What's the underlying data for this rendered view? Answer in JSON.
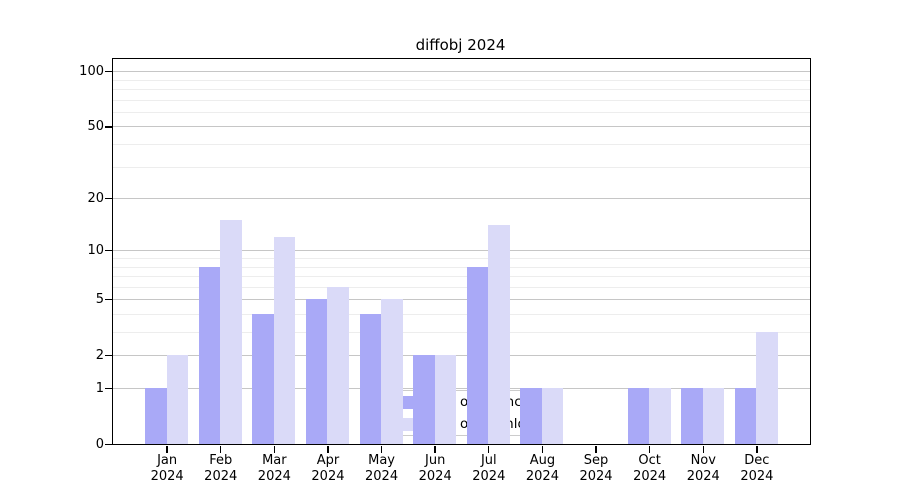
{
  "chart_data": {
    "type": "bar",
    "title": "diffobj 2024",
    "categories": [
      "Jan",
      "Feb",
      "Mar",
      "Apr",
      "May",
      "Jun",
      "Jul",
      "Aug",
      "Sep",
      "Oct",
      "Nov",
      "Dec"
    ],
    "x_year_label": "2024",
    "series": [
      {
        "name": "Nb of distinct IPs",
        "color": "#a9a9f7",
        "values": [
          1,
          8,
          4,
          5,
          4,
          2,
          8,
          1,
          0,
          1,
          1,
          1
        ]
      },
      {
        "name": "Nb of downloads",
        "color": "#dadaf8",
        "values": [
          2,
          15,
          12,
          6,
          5,
          2,
          14,
          1,
          0,
          1,
          1,
          3
        ]
      }
    ],
    "y_axis": {
      "scale": "log1p",
      "tick_values": [
        0,
        1,
        2,
        5,
        10,
        20,
        50,
        100
      ],
      "minor_gridline_values": [
        3,
        4,
        6,
        7,
        8,
        9,
        30,
        40,
        60,
        70,
        80,
        90
      ],
      "ylim": [
        0,
        117
      ]
    },
    "legend": {
      "position": "lower-center"
    },
    "grid": true,
    "colors": {
      "major_grid": "#c6c6c6",
      "minor_grid": "#ededed",
      "frame": "#000000",
      "background": "#ffffff"
    }
  }
}
